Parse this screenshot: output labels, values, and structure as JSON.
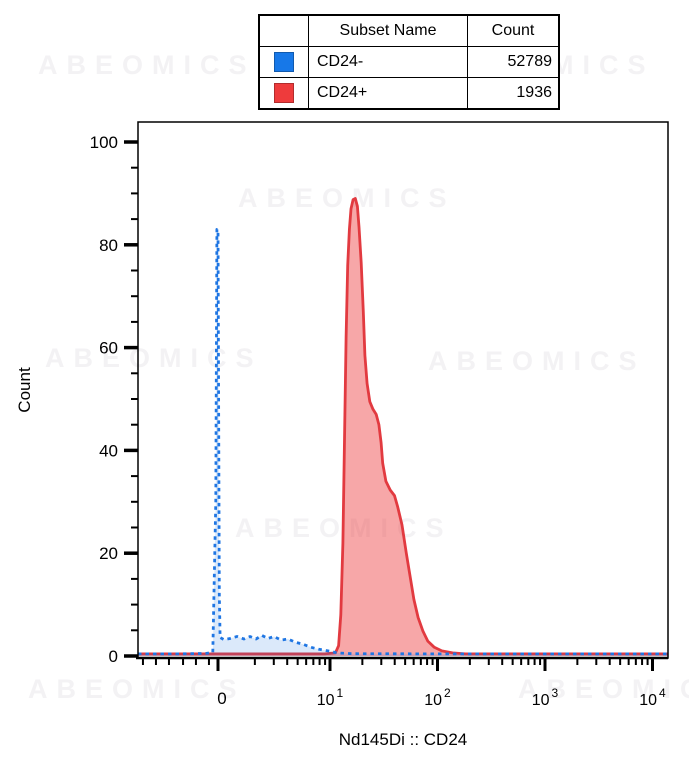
{
  "watermark": {
    "text": "ABEOMICS"
  },
  "legend_table": {
    "headers": {
      "swatch": "",
      "name": "Subset Name",
      "count": "Count"
    },
    "rows": [
      {
        "name": "CD24-",
        "count": "52789",
        "color": "#1778e8"
      },
      {
        "name": "CD24+",
        "count": "1936",
        "color": "#ee3b3c"
      }
    ]
  },
  "chart_data": {
    "type": "area",
    "subtype": "flow-cytometry-histogram-overlay",
    "title": "",
    "xlabel": "Nd145Di :: CD24",
    "ylabel": "Count",
    "x_scale": "biexponential; pos = log10(value) for value >= 1, zero-pileup region near pos 0, negative linear region at left",
    "xaxis": {
      "major_ticks": [
        {
          "label": "0",
          "pos": -0.042
        },
        {
          "base": "10",
          "exp": "1",
          "pos": 1
        },
        {
          "base": "10",
          "exp": "2",
          "pos": 2
        },
        {
          "base": "10",
          "exp": "3",
          "pos": 3
        },
        {
          "base": "10",
          "exp": "4",
          "pos": 4
        }
      ],
      "minor_neg_pos": [
        -0.74,
        -0.619,
        -0.498,
        -0.367,
        -0.247,
        -0.126
      ],
      "range_pos": [
        -0.786,
        4.144
      ]
    },
    "yaxis": {
      "label": "Count",
      "major_ticks": [
        0,
        20,
        40,
        60,
        80,
        100
      ],
      "minor_step": 5,
      "range": [
        0,
        100
      ]
    },
    "series": [
      {
        "name": "CD24-",
        "count": 52789,
        "color": "#1f76e3",
        "fill": "rgba(31,118,227,0.16)",
        "style": "dotted",
        "peak": {
          "pos": -0.047,
          "height": 83
        },
        "points": [
          [
            -0.786,
            0.4
          ],
          [
            -0.4,
            0.4
          ],
          [
            -0.15,
            0.5
          ],
          [
            -0.09,
            0.7
          ],
          [
            -0.062,
            30
          ],
          [
            -0.052,
            83
          ],
          [
            -0.042,
            83
          ],
          [
            -0.03,
            12
          ],
          [
            -0.022,
            3.6
          ],
          [
            0.014,
            3.2
          ],
          [
            0.07,
            3.4
          ],
          [
            0.135,
            3.8
          ],
          [
            0.2,
            3.3
          ],
          [
            0.256,
            3.8
          ],
          [
            0.312,
            3.3
          ],
          [
            0.367,
            4.0
          ],
          [
            0.423,
            3.4
          ],
          [
            0.479,
            3.8
          ],
          [
            0.544,
            3.1
          ],
          [
            0.609,
            3.3
          ],
          [
            0.674,
            2.7
          ],
          [
            0.749,
            2.3
          ],
          [
            0.823,
            1.7
          ],
          [
            0.898,
            1.3
          ],
          [
            0.981,
            1.0
          ],
          [
            1.065,
            0.6
          ],
          [
            1.2,
            0.45
          ],
          [
            2.0,
            0.4
          ],
          [
            3.0,
            0.4
          ],
          [
            4.144,
            0.4
          ]
        ]
      },
      {
        "name": "CD24+",
        "count": 1936,
        "color": "#e23a40",
        "fill": "rgba(238,59,63,0.45)",
        "style": "solid",
        "peak": {
          "pos": 1.235,
          "height": 89
        },
        "points": [
          [
            -0.786,
            0.4
          ],
          [
            0.0,
            0.4
          ],
          [
            0.6,
            0.4
          ],
          [
            0.95,
            0.4
          ],
          [
            1.05,
            0.6
          ],
          [
            1.08,
            2
          ],
          [
            1.1,
            8
          ],
          [
            1.12,
            22
          ],
          [
            1.135,
            42
          ],
          [
            1.15,
            62
          ],
          [
            1.165,
            76
          ],
          [
            1.18,
            83
          ],
          [
            1.195,
            87
          ],
          [
            1.215,
            88.8
          ],
          [
            1.235,
            89
          ],
          [
            1.255,
            87.5
          ],
          [
            1.27,
            83.5
          ],
          [
            1.29,
            76.5
          ],
          [
            1.31,
            67
          ],
          [
            1.325,
            58.5
          ],
          [
            1.345,
            53
          ],
          [
            1.37,
            49.5
          ],
          [
            1.4,
            48
          ],
          [
            1.43,
            47
          ],
          [
            1.455,
            45
          ],
          [
            1.475,
            41.5
          ],
          [
            1.49,
            37.5
          ],
          [
            1.52,
            34
          ],
          [
            1.56,
            32.3
          ],
          [
            1.6,
            31.2
          ],
          [
            1.63,
            29
          ],
          [
            1.67,
            25.5
          ],
          [
            1.71,
            20
          ],
          [
            1.745,
            15.5
          ],
          [
            1.78,
            11
          ],
          [
            1.82,
            7.5
          ],
          [
            1.865,
            4.8
          ],
          [
            1.91,
            2.9
          ],
          [
            1.97,
            1.7
          ],
          [
            2.04,
            1.0
          ],
          [
            2.14,
            0.6
          ],
          [
            2.26,
            0.4
          ],
          [
            3.0,
            0.4
          ],
          [
            4.144,
            0.4
          ]
        ]
      }
    ],
    "legend_position": "top-center-table",
    "grid": false
  }
}
